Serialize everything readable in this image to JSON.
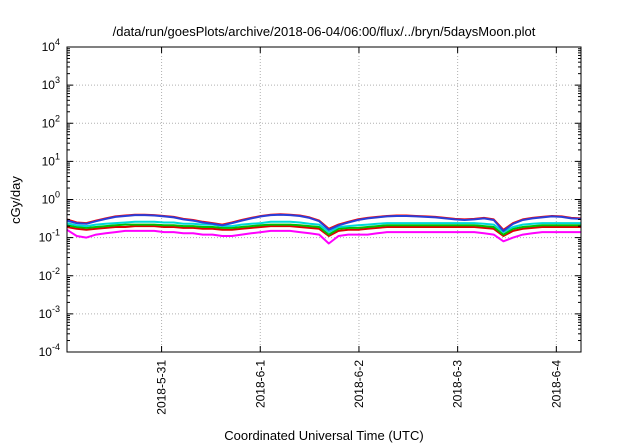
{
  "chart_data": {
    "type": "line",
    "title": "/data/run/goesPlots/archive/2018-06-04/06:00/flux/../bryn/5daysMoon.plot",
    "xlabel": "Coordinated Universal Time (UTC)",
    "ylabel": "cGy/day",
    "yscale": "log",
    "ylim": [
      0.0001,
      10000
    ],
    "xlim": [
      "2018-05-30T01:00",
      "2018-06-04T06:00"
    ],
    "x_ticks": [
      {
        "x": "2018-05-31T00:00",
        "label": "2018-5-31"
      },
      {
        "x": "2018-06-01T00:00",
        "label": "2018-6-1"
      },
      {
        "x": "2018-06-02T00:00",
        "label": "2018-6-2"
      },
      {
        "x": "2018-06-03T00:00",
        "label": "2018-6-3"
      },
      {
        "x": "2018-06-04T00:00",
        "label": "2018-6-4"
      }
    ],
    "y_ticks": [
      {
        "value": 0.0001,
        "base": "10",
        "exp": "-4"
      },
      {
        "value": 0.001,
        "base": "10",
        "exp": "-3"
      },
      {
        "value": 0.01,
        "base": "10",
        "exp": "-2"
      },
      {
        "value": 0.1,
        "base": "10",
        "exp": "-1"
      },
      {
        "value": 1,
        "base": "10",
        "exp": "0"
      },
      {
        "value": 10,
        "base": "10",
        "exp": "1"
      },
      {
        "value": 100,
        "base": "10",
        "exp": "2"
      },
      {
        "value": 1000,
        "base": "10",
        "exp": "3"
      },
      {
        "value": 10000,
        "base": "10",
        "exp": "4"
      }
    ],
    "grid": true,
    "series": [
      {
        "color": "#ff00ff",
        "values": [
          0.16,
          0.11,
          0.1,
          0.12,
          0.13,
          0.14,
          0.15,
          0.15,
          0.15,
          0.15,
          0.14,
          0.14,
          0.13,
          0.13,
          0.12,
          0.12,
          0.11,
          0.11,
          0.12,
          0.13,
          0.14,
          0.15,
          0.15,
          0.15,
          0.14,
          0.13,
          0.12,
          0.07,
          0.11,
          0.12,
          0.12,
          0.12,
          0.13,
          0.14,
          0.14,
          0.14,
          0.14,
          0.14,
          0.14,
          0.14,
          0.14,
          0.14,
          0.14,
          0.13,
          0.12,
          0.08,
          0.1,
          0.12,
          0.13,
          0.14,
          0.14,
          0.14,
          0.14,
          0.14
        ]
      },
      {
        "color": "#dd0000",
        "values": [
          0.19,
          0.17,
          0.16,
          0.17,
          0.18,
          0.19,
          0.19,
          0.2,
          0.2,
          0.2,
          0.19,
          0.19,
          0.18,
          0.18,
          0.17,
          0.17,
          0.16,
          0.16,
          0.17,
          0.18,
          0.19,
          0.2,
          0.2,
          0.2,
          0.19,
          0.18,
          0.17,
          0.11,
          0.15,
          0.16,
          0.16,
          0.17,
          0.18,
          0.19,
          0.19,
          0.19,
          0.19,
          0.19,
          0.19,
          0.19,
          0.19,
          0.19,
          0.19,
          0.18,
          0.17,
          0.11,
          0.15,
          0.17,
          0.18,
          0.19,
          0.19,
          0.19,
          0.19,
          0.19
        ]
      },
      {
        "color": "#00c000",
        "values": [
          0.21,
          0.19,
          0.18,
          0.19,
          0.2,
          0.21,
          0.22,
          0.22,
          0.22,
          0.22,
          0.21,
          0.21,
          0.2,
          0.2,
          0.19,
          0.19,
          0.18,
          0.18,
          0.19,
          0.2,
          0.21,
          0.22,
          0.22,
          0.22,
          0.21,
          0.2,
          0.19,
          0.12,
          0.17,
          0.18,
          0.18,
          0.19,
          0.2,
          0.21,
          0.21,
          0.21,
          0.21,
          0.21,
          0.21,
          0.21,
          0.21,
          0.21,
          0.21,
          0.2,
          0.19,
          0.12,
          0.17,
          0.19,
          0.2,
          0.21,
          0.21,
          0.21,
          0.21,
          0.21
        ]
      },
      {
        "color": "#00d8d8",
        "values": [
          0.24,
          0.21,
          0.2,
          0.22,
          0.23,
          0.24,
          0.25,
          0.26,
          0.26,
          0.26,
          0.25,
          0.25,
          0.23,
          0.23,
          0.22,
          0.22,
          0.2,
          0.2,
          0.22,
          0.23,
          0.24,
          0.26,
          0.26,
          0.26,
          0.25,
          0.23,
          0.22,
          0.14,
          0.19,
          0.2,
          0.21,
          0.22,
          0.23,
          0.24,
          0.24,
          0.24,
          0.24,
          0.24,
          0.24,
          0.24,
          0.24,
          0.24,
          0.24,
          0.23,
          0.22,
          0.14,
          0.19,
          0.22,
          0.23,
          0.24,
          0.24,
          0.24,
          0.24,
          0.24
        ]
      },
      {
        "color": "#ff0000",
        "values": [
          0.3,
          0.25,
          0.24,
          0.28,
          0.32,
          0.36,
          0.38,
          0.4,
          0.4,
          0.39,
          0.37,
          0.35,
          0.31,
          0.29,
          0.26,
          0.24,
          0.22,
          0.25,
          0.29,
          0.33,
          0.37,
          0.4,
          0.41,
          0.4,
          0.38,
          0.34,
          0.28,
          0.17,
          0.22,
          0.26,
          0.3,
          0.33,
          0.35,
          0.37,
          0.38,
          0.38,
          0.37,
          0.36,
          0.35,
          0.33,
          0.31,
          0.3,
          0.31,
          0.33,
          0.3,
          0.16,
          0.24,
          0.3,
          0.33,
          0.35,
          0.37,
          0.36,
          0.33,
          0.32
        ]
      },
      {
        "color": "#2a3ed8",
        "values": [
          0.28,
          0.24,
          0.23,
          0.27,
          0.31,
          0.35,
          0.37,
          0.39,
          0.39,
          0.38,
          0.36,
          0.34,
          0.3,
          0.28,
          0.25,
          0.23,
          0.21,
          0.24,
          0.28,
          0.32,
          0.36,
          0.39,
          0.4,
          0.39,
          0.37,
          0.33,
          0.27,
          0.16,
          0.21,
          0.25,
          0.29,
          0.32,
          0.34,
          0.36,
          0.37,
          0.37,
          0.36,
          0.35,
          0.34,
          0.32,
          0.3,
          0.29,
          0.3,
          0.32,
          0.29,
          0.15,
          0.23,
          0.29,
          0.32,
          0.34,
          0.36,
          0.35,
          0.32,
          0.31
        ]
      }
    ]
  }
}
